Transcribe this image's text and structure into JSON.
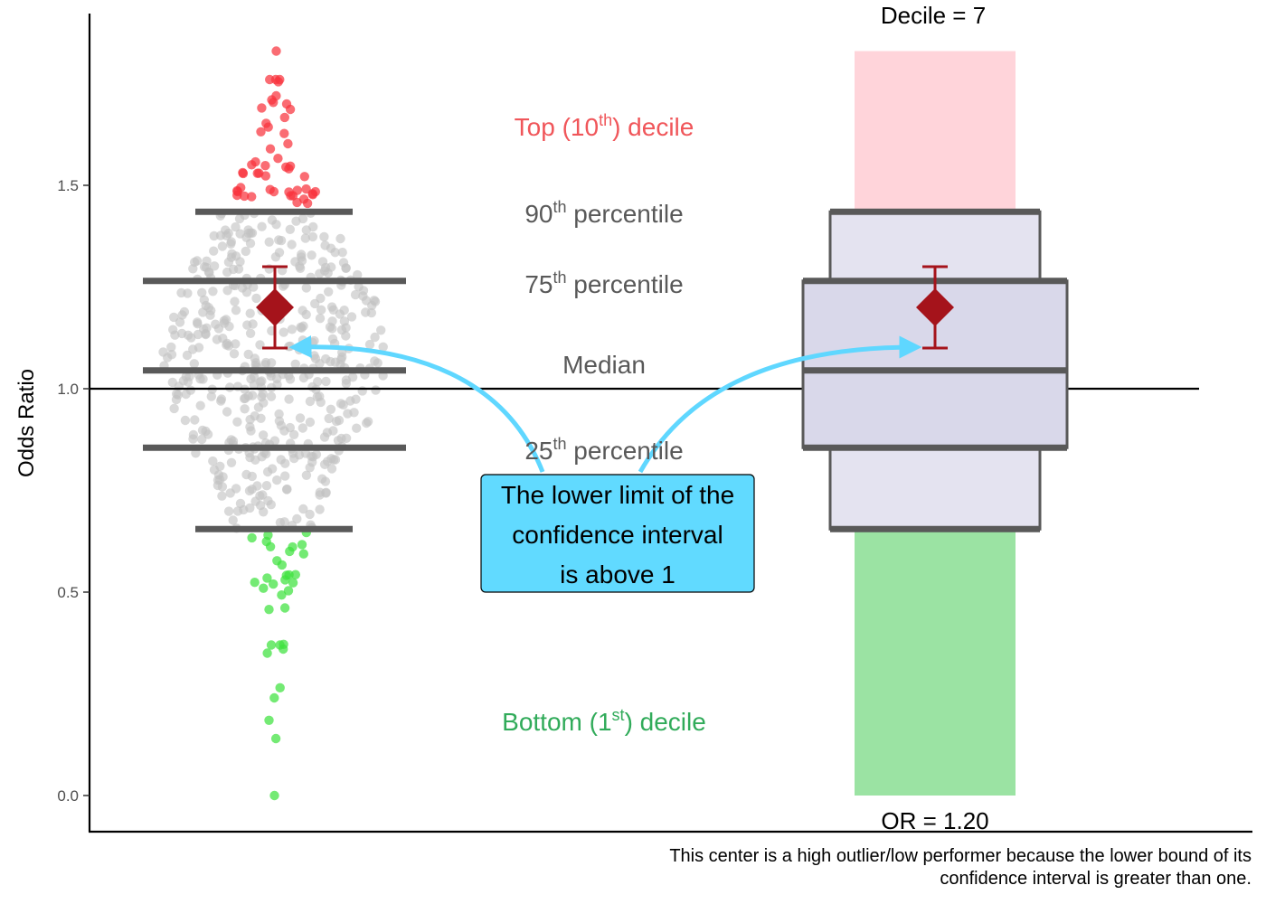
{
  "chart_data": {
    "type": "scatter",
    "ylabel": "Odds Ratio",
    "ylim": [
      -0.09,
      1.91
    ],
    "yticks": [
      0.0,
      0.5,
      1.0,
      1.5
    ],
    "ytick_labels": [
      "0.0",
      "0.5",
      "1.0",
      "1.5"
    ],
    "reference_line": 1.0,
    "percentiles": {
      "p10": 0.655,
      "p25": 0.855,
      "median": 1.045,
      "p75": 1.265,
      "p90": 1.435
    },
    "max_value": 1.83,
    "center": {
      "odds_ratio": 1.2,
      "ci_lower": 1.1,
      "ci_upper": 1.3
    },
    "distribution": {
      "n": 520,
      "top_decile_color": "#f8333d",
      "bottom_decile_color": "#3ee23e",
      "middle_color": "#c2c2c2",
      "bottom_tail_values": [
        0.0,
        0.14,
        0.185,
        0.24,
        0.265,
        0.36,
        0.35
      ]
    },
    "labels": {
      "top_decile": {
        "pre": "Top (10",
        "sup": "th",
        "post": ") decile"
      },
      "p90": {
        "pre": "90",
        "sup": "th",
        "post": " percentile"
      },
      "p75": {
        "pre": "75",
        "sup": "th",
        "post": " percentile"
      },
      "median": "Median",
      "p25": {
        "pre": "25",
        "sup": "th",
        "post": " percentile"
      },
      "bottom_decile": {
        "pre": "Bottom (1",
        "sup": "st",
        "post": ") decile"
      }
    },
    "panel_title": "Decile = 7",
    "or_label": "OR = 1.20",
    "callout": [
      "The lower limit of the",
      "confidence interval",
      "is above 1"
    ],
    "caption": [
      "This center is a high outlier/low performer because the lower bound of its",
      "confidence interval is greater than one."
    ],
    "colors": {
      "band_top": "#ffd4da",
      "band_bottom": "#9be3a3",
      "box_outer": "#e4e3f0",
      "box_inner": "#d9d8ea",
      "box_line": "#595959",
      "marker": "#a5131b",
      "arrow": "#5fd7ff",
      "callout_fill": "#61daff"
    }
  }
}
